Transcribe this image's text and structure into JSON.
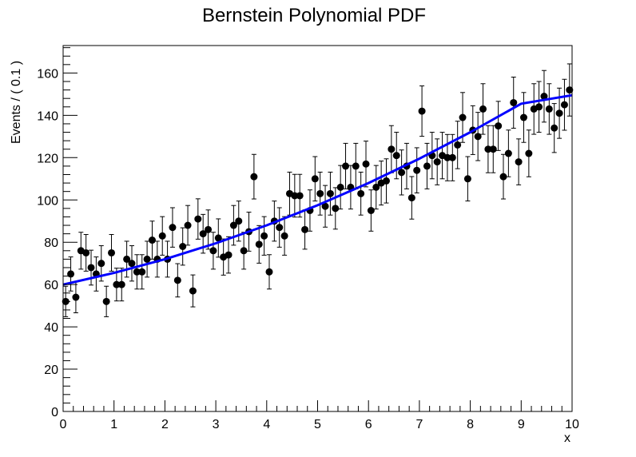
{
  "chart_data": {
    "type": "scatter",
    "title": "Bernstein Polynomial PDF",
    "xlabel": "x",
    "ylabel": "Events / ( 0.1 )",
    "xlim": [
      0,
      10
    ],
    "ylim": [
      0,
      173
    ],
    "x_ticks": [
      0,
      1,
      2,
      3,
      4,
      5,
      6,
      7,
      8,
      9,
      10
    ],
    "x_tick_labels": [
      "0",
      "1",
      "2",
      "3",
      "4",
      "5",
      "6",
      "7",
      "8",
      "9",
      "10"
    ],
    "y_ticks": [
      0,
      20,
      40,
      60,
      80,
      100,
      120,
      140,
      160
    ],
    "y_tick_labels": [
      "0",
      "20",
      "40",
      "60",
      "80",
      "100",
      "120",
      "140",
      "160"
    ],
    "grid": false,
    "legend": "none",
    "colors": {
      "points": "#000000",
      "curve": "#0000ff",
      "axis": "#000000"
    },
    "series": [
      {
        "kind": "points-with-error-bars",
        "x": [
          0.05,
          0.15,
          0.25,
          0.35,
          0.45,
          0.55,
          0.65,
          0.75,
          0.85,
          0.95,
          1.05,
          1.15,
          1.25,
          1.35,
          1.45,
          1.55,
          1.65,
          1.75,
          1.85,
          1.95,
          2.05,
          2.15,
          2.25,
          2.35,
          2.45,
          2.55,
          2.65,
          2.75,
          2.85,
          2.95,
          3.05,
          3.15,
          3.25,
          3.35,
          3.45,
          3.55,
          3.65,
          3.75,
          3.85,
          3.95,
          4.05,
          4.15,
          4.25,
          4.35,
          4.45,
          4.55,
          4.65,
          4.75,
          4.85,
          4.95,
          5.05,
          5.15,
          5.25,
          5.35,
          5.45,
          5.55,
          5.65,
          5.75,
          5.85,
          5.95,
          6.05,
          6.15,
          6.25,
          6.35,
          6.45,
          6.55,
          6.65,
          6.75,
          6.85,
          6.95,
          7.05,
          7.15,
          7.25,
          7.35,
          7.45,
          7.55,
          7.65,
          7.75,
          7.85,
          7.95,
          8.05,
          8.15,
          8.25,
          8.35,
          8.45,
          8.55,
          8.65,
          8.75,
          8.85,
          8.95,
          9.05,
          9.15,
          9.25,
          9.35,
          9.45,
          9.55,
          9.65,
          9.75,
          9.85,
          9.95
        ],
        "y": [
          52,
          65,
          54,
          76,
          75,
          68,
          65,
          70,
          52,
          75,
          60,
          60,
          72,
          70,
          66,
          66,
          72,
          81,
          72,
          83,
          72,
          87,
          62,
          78,
          88,
          57,
          91,
          84,
          86,
          76,
          82,
          73,
          74,
          88,
          90,
          76,
          85,
          111,
          79,
          83,
          66,
          90,
          87,
          83,
          103,
          102,
          102,
          86,
          95,
          110,
          103,
          97,
          103,
          96,
          106,
          116,
          106,
          116,
          103,
          117,
          95,
          106,
          108,
          109,
          124,
          121,
          113,
          116,
          101,
          114,
          142,
          116,
          121,
          118,
          121,
          120,
          120,
          126,
          139,
          110,
          133,
          130,
          143,
          124,
          124,
          135,
          111,
          122,
          146,
          118,
          139,
          122,
          143,
          144,
          149,
          143,
          134,
          141,
          145,
          152
        ]
      },
      {
        "kind": "fit-curve",
        "x": [
          0,
          1,
          2,
          3,
          4,
          5,
          6,
          7,
          8,
          9,
          10
        ],
        "y": [
          60,
          65.5,
          72,
          79.5,
          88,
          97.5,
          108,
          119.5,
          132,
          145.5,
          149.5
        ]
      }
    ]
  }
}
